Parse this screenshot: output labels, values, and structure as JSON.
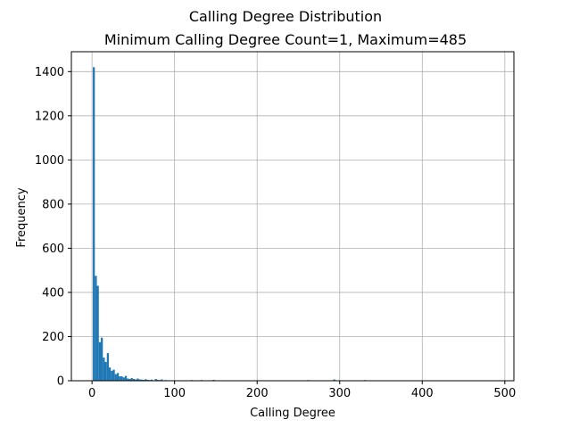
{
  "chart_data": {
    "type": "bar",
    "title": "Calling Degree Distribution",
    "subtitle": "Minimum Calling Degree Count=1, Maximum=485",
    "xlabel": "Calling Degree",
    "ylabel": "Frequency",
    "xlim": [
      -25,
      511
    ],
    "ylim": [
      0,
      1490
    ],
    "xticks": [
      0,
      100,
      200,
      300,
      400,
      500
    ],
    "yticks": [
      0,
      200,
      400,
      600,
      800,
      1000,
      1200,
      1400
    ],
    "grid": true,
    "bin_width": 2.42,
    "color": "#1f77b4",
    "bins": [
      [
        1,
        1420
      ],
      [
        3.42,
        475
      ],
      [
        5.84,
        430
      ],
      [
        8.26,
        175
      ],
      [
        10.68,
        195
      ],
      [
        13.1,
        105
      ],
      [
        15.52,
        85
      ],
      [
        17.94,
        125
      ],
      [
        20.36,
        60
      ],
      [
        22.78,
        45
      ],
      [
        25.2,
        50
      ],
      [
        27.62,
        30
      ],
      [
        30.04,
        35
      ],
      [
        32.46,
        20
      ],
      [
        34.88,
        20
      ],
      [
        37.3,
        15
      ],
      [
        39.72,
        22
      ],
      [
        42.14,
        10
      ],
      [
        44.56,
        8
      ],
      [
        46.98,
        12
      ],
      [
        49.4,
        8
      ],
      [
        51.82,
        6
      ],
      [
        54.24,
        10
      ],
      [
        56.66,
        6
      ],
      [
        59.08,
        5
      ],
      [
        61.5,
        4
      ],
      [
        63.92,
        7
      ],
      [
        66.34,
        4
      ],
      [
        68.76,
        3
      ],
      [
        71.18,
        5
      ],
      [
        73.6,
        2
      ],
      [
        76.02,
        8
      ],
      [
        78.44,
        4
      ],
      [
        80.86,
        3
      ],
      [
        83.28,
        6
      ],
      [
        88.12,
        3
      ],
      [
        97.8,
        2
      ],
      [
        105.06,
        2
      ],
      [
        119.58,
        3
      ],
      [
        131.68,
        3
      ],
      [
        136.52,
        2
      ],
      [
        146.2,
        4
      ],
      [
        172.82,
        2
      ],
      [
        260.74,
        3
      ],
      [
        292.2,
        6
      ],
      [
        329.5,
        3
      ],
      [
        483,
        2
      ]
    ]
  }
}
